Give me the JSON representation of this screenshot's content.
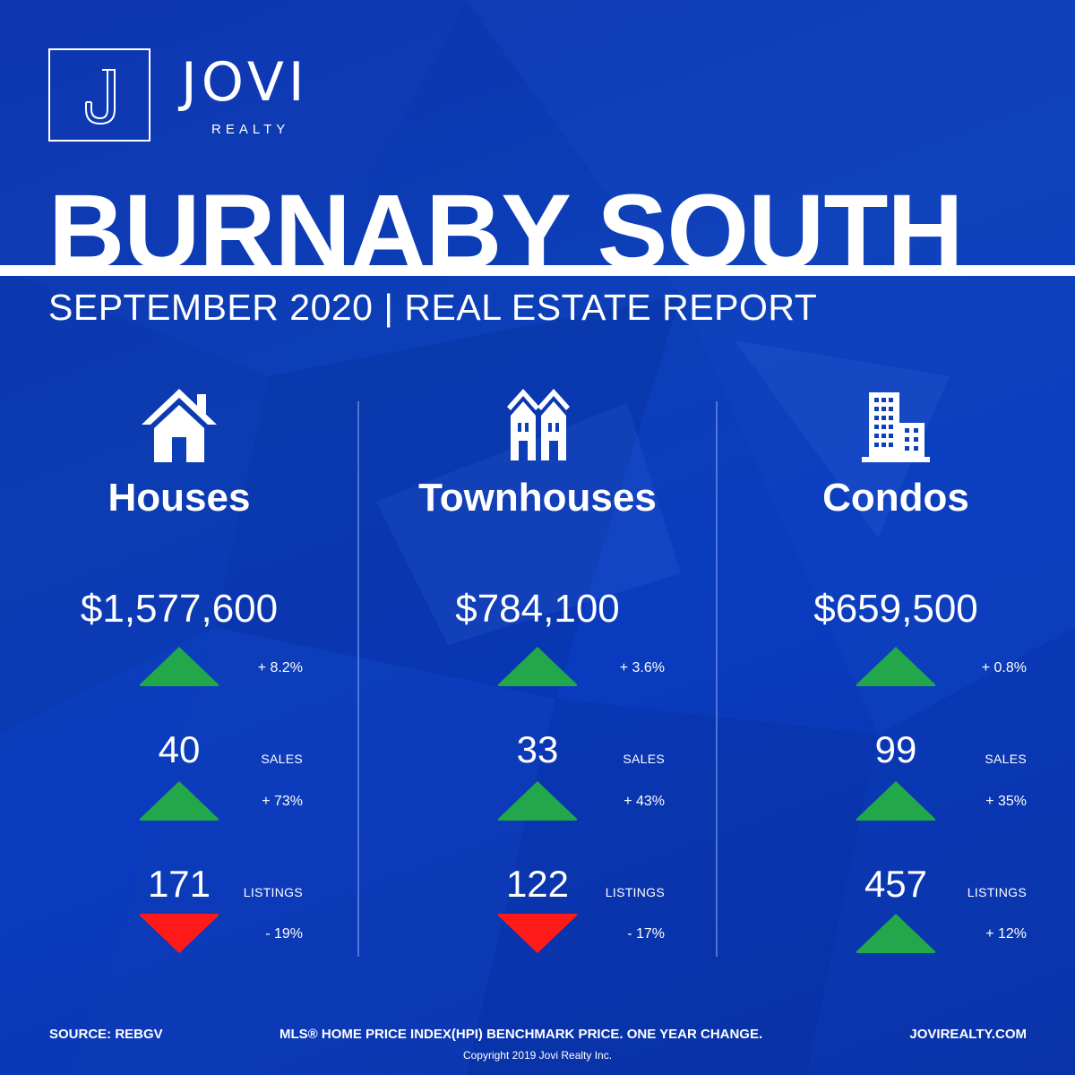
{
  "brand": {
    "logo_letter": "J",
    "name": "JOVI",
    "sub": "REALTY"
  },
  "title": "BURNABY SOUTH",
  "subtitle": "SEPTEMBER 2020 | REAL ESTATE REPORT",
  "colors": {
    "background": "#0c3fb8",
    "up": "#22a84a",
    "down": "#ff1a1a",
    "text": "#ffffff"
  },
  "columns": [
    {
      "icon": "house-icon",
      "title": "Houses",
      "price": "$1,577,600",
      "price_change": "+ 8.2%",
      "price_direction": "up",
      "sales": "40",
      "sales_label": "SALES",
      "sales_change": "+ 73%",
      "sales_direction": "up",
      "listings": "171",
      "listings_label": "LISTINGS",
      "listings_change": "- 19%",
      "listings_direction": "down"
    },
    {
      "icon": "townhouse-icon",
      "title": "Townhouses",
      "price": "$784,100",
      "price_change": "+ 3.6%",
      "price_direction": "up",
      "sales": "33",
      "sales_label": "SALES",
      "sales_change": "+ 43%",
      "sales_direction": "up",
      "listings": "122",
      "listings_label": "LISTINGS",
      "listings_change": "- 17%",
      "listings_direction": "down"
    },
    {
      "icon": "condo-building-icon",
      "title": "Condos",
      "price": "$659,500",
      "price_change": "+ 0.8%",
      "price_direction": "up",
      "sales": "99",
      "sales_label": "SALES",
      "sales_change": "+ 35%",
      "sales_direction": "up",
      "listings": "457",
      "listings_label": "LISTINGS",
      "listings_change": "+ 12%",
      "listings_direction": "up"
    }
  ],
  "footer": {
    "source": "SOURCE:  REBGV",
    "note": "MLS® HOME PRICE INDEX(HPI) BENCHMARK PRICE. ONE YEAR CHANGE.",
    "website": "JOVIREALTY.COM",
    "copyright": "Copyright 2019 Jovi Realty Inc."
  }
}
